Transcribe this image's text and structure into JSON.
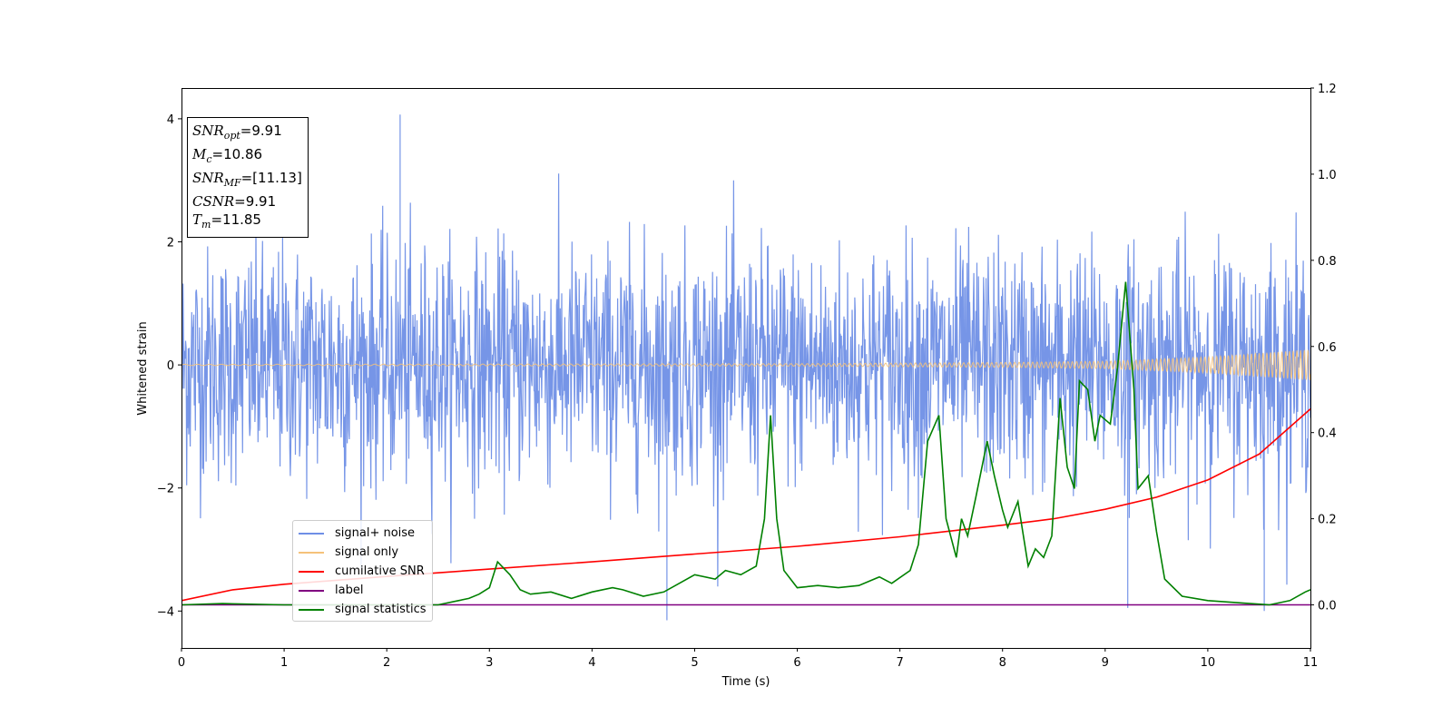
{
  "info": {
    "snr_opt": {
      "sym": "SNR",
      "sub": "opt",
      "val": "=9.91"
    },
    "mc": {
      "sym": "M",
      "sub": "c",
      "val": "=10.86"
    },
    "snr_mf": {
      "sym": "SNR",
      "sub": "MF",
      "val": "=[11.13]"
    },
    "csnr": {
      "sym": "CSNR",
      "sub": "",
      "val": "=9.91"
    },
    "tm": {
      "sym": "T",
      "sub": "m",
      "val": "=11.85"
    }
  },
  "legend": [
    {
      "label": "signal+ noise",
      "color": "#6f8fe6"
    },
    {
      "label": "signal only",
      "color": "#f5c27a"
    },
    {
      "label": "cumilative SNR",
      "color": "#ff0000"
    },
    {
      "label": "label",
      "color": "#800080"
    },
    {
      "label": "signal statistics",
      "color": "#008000"
    }
  ],
  "chart_data": {
    "type": "line",
    "xlabel": "Time (s)",
    "ylabel": "Whitened strain",
    "xlim": [
      0,
      11
    ],
    "ylim": [
      -4.6,
      4.5
    ],
    "y2lim": [
      -0.1,
      1.2
    ],
    "xticks": [
      "0",
      "1",
      "2",
      "3",
      "4",
      "5",
      "6",
      "7",
      "8",
      "9",
      "10",
      "11"
    ],
    "yticks": [
      "4",
      "2",
      "0",
      "−2",
      "−4"
    ],
    "y2ticks": [
      "1.2",
      "1.0",
      "0.8",
      "0.6",
      "0.4",
      "0.2",
      "0.0"
    ],
    "series": [
      {
        "name": "signal+ noise",
        "axis": "left",
        "color": "#6f8fe6",
        "description_band": [
          -2.8,
          2.9
        ],
        "extreme_peaks": [
          [
            2.13,
            4.07
          ],
          [
            4.73,
            -4.15
          ],
          [
            9.22,
            -3.95
          ],
          [
            10.55,
            -4.0
          ]
        ]
      },
      {
        "name": "signal only",
        "axis": "left",
        "color": "#f5c27a",
        "envelope": [
          [
            0,
            0.01
          ],
          [
            6,
            0.02
          ],
          [
            8,
            0.04
          ],
          [
            9,
            0.06
          ],
          [
            10,
            0.13
          ],
          [
            11,
            0.25
          ]
        ]
      },
      {
        "name": "cumilative SNR",
        "axis": "right",
        "color": "#ff0000",
        "x": [
          0,
          0.5,
          1,
          2,
          3,
          4,
          5,
          6,
          7,
          8,
          8.5,
          9,
          9.5,
          10,
          10.5,
          11
        ],
        "y": [
          0.01,
          0.035,
          0.048,
          0.066,
          0.083,
          0.1,
          0.118,
          0.136,
          0.158,
          0.185,
          0.2,
          0.222,
          0.25,
          0.29,
          0.35,
          0.455
        ]
      },
      {
        "name": "label",
        "axis": "right",
        "color": "#800080",
        "x": [
          0,
          11
        ],
        "y": [
          0.0,
          0.0
        ]
      },
      {
        "name": "signal statistics",
        "axis": "right",
        "color": "#008000",
        "x": [
          0,
          0.4,
          1,
          1.5,
          2,
          2.5,
          2.7,
          2.8,
          2.9,
          3.0,
          3.08,
          3.2,
          3.3,
          3.4,
          3.6,
          3.8,
          4.0,
          4.2,
          4.3,
          4.5,
          4.7,
          4.85,
          5.0,
          5.2,
          5.3,
          5.45,
          5.6,
          5.68,
          5.74,
          5.8,
          5.87,
          6.0,
          6.2,
          6.4,
          6.6,
          6.8,
          6.92,
          7.1,
          7.18,
          7.27,
          7.38,
          7.45,
          7.55,
          7.6,
          7.66,
          7.74,
          7.85,
          7.92,
          8.0,
          8.05,
          8.15,
          8.25,
          8.32,
          8.4,
          8.48,
          8.56,
          8.63,
          8.7,
          8.75,
          8.83,
          8.9,
          8.95,
          9.05,
          9.12,
          9.2,
          9.28,
          9.32,
          9.42,
          9.5,
          9.58,
          9.75,
          10.0,
          10.3,
          10.6,
          10.8,
          10.95,
          11.0
        ],
        "y": [
          0.0,
          0.003,
          0.0,
          0.0,
          0.0,
          0.0,
          0.01,
          0.015,
          0.025,
          0.04,
          0.1,
          0.07,
          0.035,
          0.025,
          0.03,
          0.015,
          0.03,
          0.04,
          0.035,
          0.02,
          0.03,
          0.05,
          0.07,
          0.06,
          0.08,
          0.07,
          0.09,
          0.2,
          0.44,
          0.2,
          0.08,
          0.04,
          0.045,
          0.04,
          0.045,
          0.065,
          0.05,
          0.08,
          0.14,
          0.38,
          0.44,
          0.2,
          0.11,
          0.2,
          0.16,
          0.25,
          0.38,
          0.3,
          0.22,
          0.18,
          0.24,
          0.09,
          0.13,
          0.11,
          0.16,
          0.48,
          0.32,
          0.27,
          0.52,
          0.5,
          0.38,
          0.44,
          0.42,
          0.55,
          0.75,
          0.5,
          0.27,
          0.3,
          0.17,
          0.06,
          0.02,
          0.01,
          0.005,
          0.0,
          0.01,
          0.03,
          0.035
        ]
      }
    ]
  }
}
